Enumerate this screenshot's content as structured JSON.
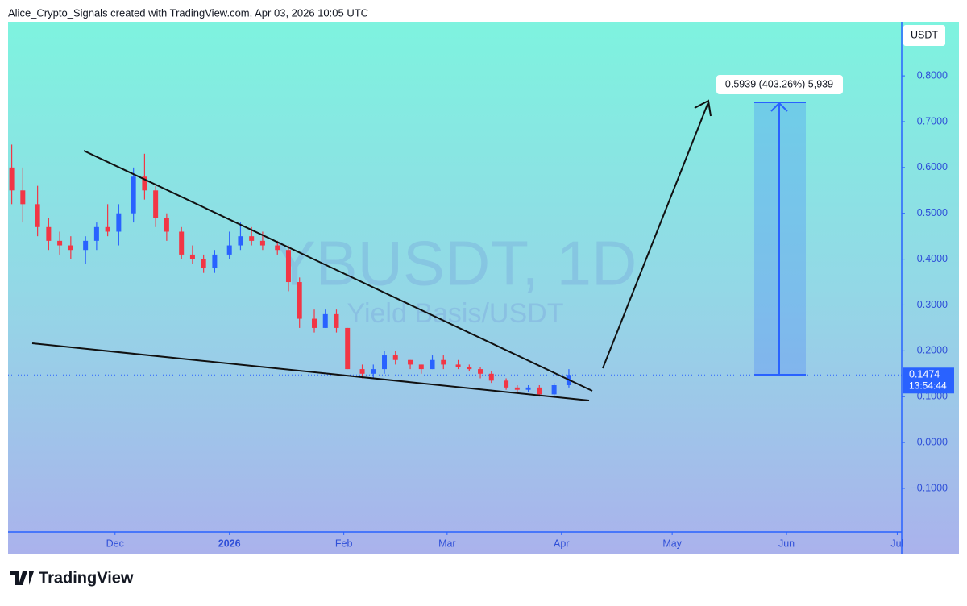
{
  "header": "Alice_Crypto_Signals created with TradingView.com, Apr 03, 2026 10:05 UTC",
  "chart_data": {
    "type": "candlestick",
    "symbol_watermark": "YBUSDT, 1D",
    "description_watermark": "Yield Basis/USDT",
    "currency": "USDT",
    "x": [
      -28,
      -25,
      -21,
      -18,
      -15,
      -12,
      -8,
      -5,
      -2,
      1,
      5,
      8,
      11,
      14,
      18,
      21,
      24,
      27,
      31,
      34,
      37,
      40,
      44,
      47,
      50,
      54,
      57,
      60,
      63,
      67,
      70,
      73,
      76,
      80,
      83,
      86,
      89,
      93,
      96,
      99,
      102,
      106,
      109,
      112,
      115,
      119,
      123
    ],
    "open": [
      0.6,
      0.55,
      0.52,
      0.47,
      0.44,
      0.43,
      0.42,
      0.44,
      0.47,
      0.46,
      0.5,
      0.58,
      0.55,
      0.49,
      0.46,
      0.41,
      0.4,
      0.38,
      0.41,
      0.43,
      0.45,
      0.44,
      0.43,
      0.42,
      0.35,
      0.27,
      0.25,
      0.28,
      0.25,
      0.16,
      0.15,
      0.16,
      0.19,
      0.18,
      0.17,
      0.16,
      0.18,
      0.17,
      0.165,
      0.16,
      0.15,
      0.135,
      0.12,
      0.115,
      0.12,
      0.105,
      0.125
    ],
    "high": [
      0.65,
      0.6,
      0.56,
      0.49,
      0.46,
      0.45,
      0.45,
      0.48,
      0.52,
      0.52,
      0.6,
      0.63,
      0.56,
      0.5,
      0.47,
      0.43,
      0.41,
      0.42,
      0.46,
      0.48,
      0.47,
      0.46,
      0.44,
      0.43,
      0.36,
      0.29,
      0.29,
      0.29,
      0.25,
      0.17,
      0.17,
      0.2,
      0.2,
      0.18,
      0.17,
      0.19,
      0.19,
      0.18,
      0.17,
      0.165,
      0.155,
      0.14,
      0.125,
      0.125,
      0.125,
      0.13,
      0.16
    ],
    "low": [
      0.52,
      0.48,
      0.45,
      0.42,
      0.41,
      0.4,
      0.39,
      0.42,
      0.45,
      0.43,
      0.48,
      0.53,
      0.47,
      0.44,
      0.4,
      0.39,
      0.37,
      0.37,
      0.4,
      0.42,
      0.43,
      0.42,
      0.41,
      0.33,
      0.25,
      0.24,
      0.25,
      0.24,
      0.16,
      0.14,
      0.14,
      0.15,
      0.17,
      0.16,
      0.15,
      0.16,
      0.16,
      0.16,
      0.155,
      0.14,
      0.13,
      0.115,
      0.11,
      0.11,
      0.1,
      0.1,
      0.12
    ],
    "close": [
      0.55,
      0.52,
      0.47,
      0.44,
      0.43,
      0.42,
      0.44,
      0.47,
      0.46,
      0.5,
      0.58,
      0.55,
      0.49,
      0.46,
      0.41,
      0.4,
      0.38,
      0.41,
      0.43,
      0.45,
      0.44,
      0.43,
      0.42,
      0.35,
      0.27,
      0.25,
      0.28,
      0.25,
      0.16,
      0.15,
      0.16,
      0.19,
      0.18,
      0.17,
      0.16,
      0.18,
      0.17,
      0.165,
      0.16,
      0.15,
      0.135,
      0.12,
      0.115,
      0.12,
      0.105,
      0.125,
      0.1474
    ],
    "up_color": "#2962ff",
    "down_color": "#f23645",
    "xlim": [
      -29,
      213
    ],
    "xticks": [
      {
        "value": 0,
        "label": "Dec"
      },
      {
        "value": 31,
        "label": "2026"
      },
      {
        "value": 62,
        "label": "Feb"
      },
      {
        "value": 90,
        "label": "Mar"
      },
      {
        "value": 121,
        "label": "Apr"
      },
      {
        "value": 151,
        "label": "May"
      },
      {
        "value": 182,
        "label": "Jun"
      },
      {
        "value": 212,
        "label": "Jul"
      }
    ],
    "ylim": [
      -0.195,
      0.918
    ],
    "yticks": [
      {
        "value": -0.1,
        "label": "−0.1000"
      },
      {
        "value": 0,
        "label": "0.0000"
      },
      {
        "value": 0.1,
        "label": "0.1000"
      },
      {
        "value": 0.2,
        "label": "0.2000"
      },
      {
        "value": 0.3,
        "label": "0.3000"
      },
      {
        "value": 0.4,
        "label": "0.4000"
      },
      {
        "value": 0.5,
        "label": "0.5000"
      },
      {
        "value": 0.6,
        "label": "0.6000"
      },
      {
        "value": 0.7,
        "label": "0.7000"
      },
      {
        "value": 0.8,
        "label": "0.8000"
      }
    ],
    "last_price": 0.1474,
    "countdown": "13:54:44",
    "measure_label": "0.5939 (403.26%) 5,939"
  },
  "footer": {
    "logo": "TradingView"
  }
}
